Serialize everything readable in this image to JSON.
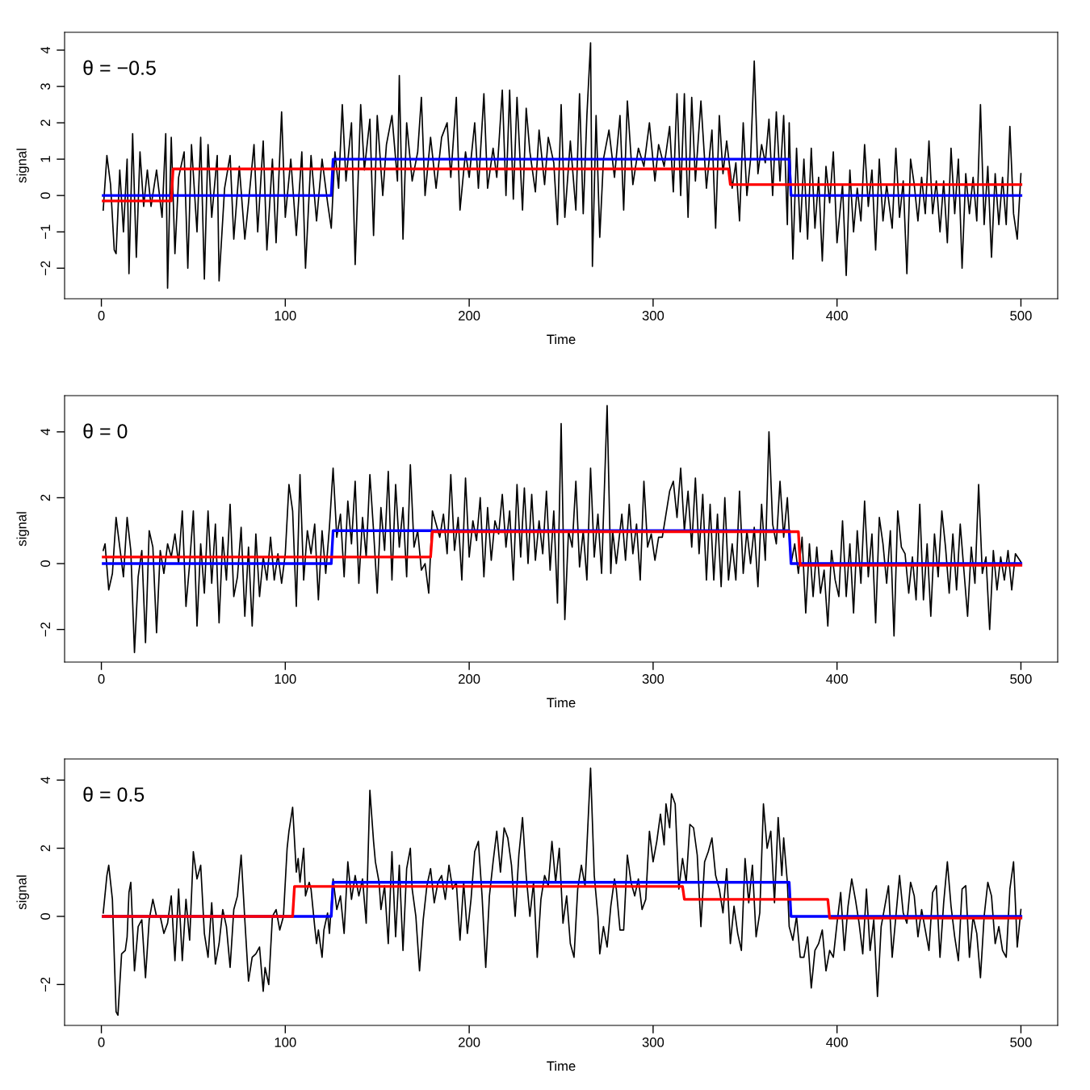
{
  "chart_data": [
    {
      "type": "line",
      "xlabel": "Time",
      "ylabel": "signal",
      "annotations": [
        "θ = −0.5"
      ],
      "xlim": [
        -20,
        520
      ],
      "xticks": [
        0,
        100,
        200,
        300,
        400,
        500
      ],
      "ylim": [
        -2.84,
        4.49
      ],
      "yticks": [
        -2,
        -1,
        0,
        1,
        2,
        3,
        4
      ],
      "grid": false,
      "legend": false,
      "series": [
        {
          "color": "#000000",
          "x": [
            1,
            3,
            5,
            7,
            8,
            10,
            12,
            14,
            15,
            17,
            19,
            21,
            23,
            25,
            27,
            30,
            33,
            35,
            36,
            38,
            40,
            42,
            45,
            47,
            49,
            52,
            54,
            56,
            58,
            60,
            63,
            64,
            67,
            70,
            72,
            75,
            78,
            80,
            83,
            85,
            88,
            90,
            93,
            95,
            98,
            100,
            103,
            106,
            109,
            111,
            114,
            117,
            120,
            123,
            125,
            127,
            129,
            131,
            133,
            136,
            138,
            141,
            143,
            146,
            148,
            150,
            153,
            155,
            158,
            161,
            162,
            164,
            166,
            169,
            172,
            174,
            176,
            179,
            182,
            185,
            188,
            190,
            193,
            195,
            198,
            200,
            203,
            205,
            208,
            210,
            213,
            215,
            218,
            220,
            222,
            224,
            226,
            229,
            231,
            233,
            236,
            238,
            241,
            243,
            246,
            248,
            250,
            252,
            255,
            258,
            260,
            262,
            264,
            266,
            267,
            269,
            271,
            273,
            276,
            279,
            282,
            284,
            286,
            289,
            292,
            295,
            298,
            301,
            303,
            306,
            309,
            311,
            313,
            315,
            317,
            319,
            321,
            323,
            326,
            329,
            332,
            334,
            336,
            338,
            340,
            343,
            345,
            347,
            349,
            351,
            353,
            355,
            357,
            359,
            361,
            363,
            365,
            367,
            369,
            371,
            373,
            374,
            376,
            378,
            380,
            382,
            384,
            386,
            388,
            390,
            392,
            394,
            396,
            398,
            400,
            403,
            405,
            407,
            409,
            411,
            413,
            415,
            417,
            419,
            421,
            423,
            425,
            427,
            430,
            432,
            434,
            436,
            438,
            440,
            442,
            444,
            446,
            448,
            450,
            452,
            454,
            456,
            458,
            460,
            462,
            464,
            466,
            468,
            470,
            472,
            474,
            476,
            478,
            480,
            482,
            484,
            486,
            488,
            490,
            492,
            494,
            496,
            498,
            500
          ],
          "values": [
            -0.4,
            1.1,
            0.3,
            -1.5,
            -1.6,
            0.7,
            -1.0,
            1.0,
            -2.15,
            1.7,
            -1.7,
            1.2,
            -0.3,
            0.7,
            -0.3,
            0.7,
            -0.6,
            1.7,
            -2.55,
            1.6,
            -1.6,
            0.5,
            1.2,
            -2.0,
            1.4,
            -1.0,
            1.6,
            -2.3,
            1.4,
            -0.6,
            1.1,
            -2.35,
            0.2,
            1.1,
            -1.2,
            0.8,
            -1.2,
            -0.2,
            1.4,
            -1.0,
            1.5,
            -1.5,
            1.0,
            -1.3,
            2.3,
            -0.6,
            1.0,
            -1.1,
            1.2,
            -2.0,
            1.1,
            -0.7,
            1.0,
            -0.2,
            -0.9,
            1.2,
            0.2,
            2.5,
            0.4,
            2.0,
            -1.9,
            2.5,
            0.7,
            2.1,
            -1.1,
            2.2,
            0.0,
            1.4,
            2.2,
            0.4,
            3.3,
            -1.2,
            2.0,
            0.4,
            1.2,
            2.7,
            0.0,
            1.6,
            0.2,
            1.6,
            2.0,
            0.5,
            2.7,
            -0.4,
            1.2,
            0.5,
            2.0,
            0.2,
            2.8,
            0.2,
            1.3,
            0.5,
            2.9,
            0.0,
            2.9,
            -0.1,
            2.7,
            -0.4,
            2.4,
            1.2,
            0.1,
            1.8,
            0.3,
            1.6,
            0.9,
            -0.8,
            2.5,
            -0.6,
            1.5,
            -0.4,
            2.8,
            -0.5,
            2.2,
            4.2,
            -1.95,
            2.2,
            -1.15,
            1.0,
            1.8,
            0.5,
            2.2,
            -0.4,
            2.6,
            0.3,
            1.3,
            0.8,
            2.0,
            0.4,
            1.4,
            0.8,
            1.9,
            0.1,
            2.8,
            0.0,
            2.8,
            -0.6,
            2.7,
            0.4,
            2.6,
            0.2,
            1.8,
            -0.9,
            2.2,
            0.6,
            1.5,
            0.2,
            0.9,
            -0.7,
            2.0,
            0.0,
            1.0,
            3.7,
            0.6,
            1.4,
            0.9,
            2.1,
            0.0,
            2.3,
            0.4,
            2.2,
            -0.8,
            2.0,
            -1.75,
            1.3,
            -1.0,
            1.0,
            -1.2,
            1.3,
            -0.9,
            0.5,
            -1.8,
            0.8,
            -0.2,
            1.2,
            -1.3,
            0.3,
            -2.2,
            0.7,
            -1.0,
            0.2,
            -0.7,
            1.4,
            -0.3,
            0.7,
            -1.5,
            1.0,
            -0.7,
            0.3,
            -0.9,
            1.3,
            -0.6,
            0.4,
            -2.15,
            1.0,
            0.3,
            -0.7,
            0.5,
            -0.5,
            1.5,
            -0.5,
            0.4,
            -1.0,
            0.4,
            -1.3,
            1.3,
            -0.5,
            1.0,
            -2.0,
            0.6,
            -0.5,
            0.5,
            -0.7,
            2.5,
            -0.8,
            0.8,
            -1.7,
            0.6,
            -0.8,
            0.5,
            -0.8,
            1.9,
            -0.5,
            -1.2,
            0.6
          ]
        },
        {
          "color": "#0000ff",
          "x": [
            1,
            125,
            126,
            374,
            375,
            500
          ],
          "values": [
            0,
            0,
            1,
            1,
            0,
            0
          ]
        },
        {
          "color": "#ff0000",
          "x": [
            1,
            38,
            39,
            341,
            342,
            500
          ],
          "values": [
            -0.15,
            -0.15,
            0.73,
            0.73,
            0.3,
            0.3
          ]
        }
      ]
    },
    {
      "type": "line",
      "xlabel": "Time",
      "ylabel": "signal",
      "annotations": [
        "θ = 0"
      ],
      "xlim": [
        -20,
        520
      ],
      "xticks": [
        0,
        100,
        200,
        300,
        400,
        500
      ],
      "ylim": [
        -2.99,
        5.1
      ],
      "yticks": [
        -2,
        0,
        2,
        4
      ],
      "grid": false,
      "legend": false,
      "series": [
        {
          "color": "#000000",
          "x": [
            1,
            2,
            4,
            6,
            8,
            10,
            12,
            14,
            16,
            18,
            20,
            22,
            24,
            26,
            28,
            30,
            32,
            34,
            36,
            38,
            40,
            42,
            44,
            46,
            48,
            50,
            52,
            54,
            56,
            58,
            60,
            62,
            64,
            66,
            68,
            70,
            72,
            74,
            76,
            78,
            80,
            82,
            84,
            86,
            88,
            90,
            92,
            94,
            96,
            98,
            100,
            102,
            104,
            106,
            108,
            110,
            112,
            114,
            116,
            118,
            120,
            122,
            124,
            126,
            128,
            130,
            132,
            134,
            136,
            138,
            140,
            142,
            144,
            146,
            148,
            150,
            152,
            154,
            156,
            158,
            160,
            162,
            164,
            166,
            168,
            170,
            172,
            174,
            176,
            178,
            180,
            182,
            184,
            186,
            188,
            190,
            192,
            194,
            196,
            198,
            200,
            202,
            204,
            206,
            208,
            210,
            212,
            214,
            216,
            218,
            220,
            222,
            224,
            226,
            228,
            230,
            232,
            234,
            236,
            238,
            240,
            242,
            244,
            246,
            248,
            250,
            252,
            254,
            256,
            258,
            260,
            262,
            264,
            266,
            268,
            270,
            272,
            275,
            277,
            278,
            280,
            283,
            285,
            287,
            289,
            291,
            293,
            295,
            297,
            299,
            301,
            303,
            305,
            307,
            309,
            311,
            313,
            315,
            317,
            319,
            321,
            323,
            325,
            327,
            329,
            331,
            333,
            335,
            337,
            339,
            341,
            343,
            345,
            347,
            349,
            351,
            353,
            355,
            357,
            359,
            361,
            363,
            365,
            367,
            369,
            371,
            373,
            375,
            377,
            379,
            381,
            383,
            385,
            387,
            389,
            391,
            393,
            395,
            397,
            399,
            401,
            403,
            405,
            407,
            409,
            411,
            413,
            415,
            417,
            419,
            421,
            423,
            425,
            427,
            429,
            431,
            433,
            435,
            437,
            439,
            441,
            443,
            445,
            447,
            449,
            451,
            453,
            455,
            457,
            459,
            461,
            463,
            465,
            467,
            469,
            471,
            473,
            475,
            477,
            479,
            481,
            483,
            485,
            487,
            489,
            491,
            493,
            495,
            497,
            500
          ],
          "values": [
            0.4,
            0.6,
            -0.8,
            -0.3,
            1.4,
            0.5,
            -0.4,
            1.4,
            0.4,
            -2.7,
            -0.4,
            0.4,
            -2.4,
            1.0,
            0.5,
            -2.1,
            0.4,
            -0.3,
            0.6,
            0.2,
            0.9,
            0.0,
            1.6,
            -1.3,
            0.0,
            1.6,
            -1.9,
            0.6,
            -0.9,
            1.6,
            -0.6,
            1.2,
            -1.8,
            0.8,
            -0.5,
            1.8,
            -1.0,
            -0.4,
            1.1,
            -1.6,
            0.5,
            -1.9,
            0.9,
            -1.0,
            0.2,
            -0.5,
            0.8,
            -0.5,
            0.3,
            -0.6,
            0.3,
            2.4,
            1.6,
            -1.3,
            2.7,
            -0.5,
            1.0,
            0.3,
            1.2,
            -1.1,
            1.0,
            -0.3,
            1.1,
            2.9,
            0.8,
            1.5,
            -0.4,
            1.9,
            0.6,
            2.5,
            -0.6,
            1.4,
            0.2,
            2.7,
            1.0,
            -0.9,
            1.7,
            0.4,
            2.8,
            -0.5,
            2.4,
            0.5,
            1.7,
            -0.4,
            3.0,
            0.5,
            1.0,
            -0.2,
            0.0,
            -0.9,
            1.6,
            1.2,
            0.8,
            1.5,
            0.3,
            2.7,
            0.4,
            1.4,
            -0.5,
            2.6,
            0.2,
            1.3,
            0.7,
            2.0,
            -0.4,
            1.7,
            0.1,
            1.3,
            0.9,
            2.1,
            0.5,
            1.6,
            -0.5,
            2.4,
            0.2,
            2.3,
            0.0,
            2.1,
            0.1,
            1.3,
            0.3,
            2.2,
            -0.2,
            1.6,
            -1.2,
            4.25,
            -1.7,
            1.0,
            0.5,
            2.5,
            -0.1,
            1.0,
            -0.5,
            2.9,
            0.2,
            1.5,
            -0.3,
            4.8,
            -0.3,
            1.0,
            0.0,
            1.5,
            0.1,
            1.8,
            0.3,
            1.2,
            -0.5,
            2.5,
            0.5,
            0.9,
            0.1,
            0.8,
            0.8,
            1.5,
            2.2,
            2.5,
            1.4,
            2.9,
            1.0,
            2.2,
            0.5,
            2.6,
            0.3,
            2.1,
            -0.5,
            1.8,
            -0.5,
            1.5,
            -0.7,
            2.0,
            -0.5,
            0.6,
            -0.5,
            2.2,
            -0.3,
            1.0,
            0.0,
            1.1,
            -0.7,
            1.8,
            0.1,
            4.0,
            1.2,
            0.6,
            2.5,
            0.8,
            2.0,
            0.0,
            0.6,
            -0.3,
            0.8,
            -1.5,
            0.6,
            -1.0,
            0.5,
            -0.9,
            -0.2,
            -1.9,
            0.4,
            -0.5,
            -1.0,
            1.3,
            -1.0,
            0.6,
            -1.5,
            1.0,
            -0.6,
            1.9,
            -0.4,
            0.9,
            -1.8,
            1.4,
            0.6,
            -0.6,
            1.0,
            -2.2,
            1.6,
            0.5,
            0.3,
            -0.9,
            0.2,
            -1.1,
            1.8,
            -1.1,
            0.6,
            -1.6,
            0.9,
            -0.4,
            1.6,
            0.5,
            -0.9,
            0.9,
            -0.8,
            1.2,
            -0.2,
            -1.6,
            0.5,
            -0.6,
            2.4,
            -0.3,
            0.2,
            -2.0,
            0.4,
            -0.8,
            0.2,
            -0.5,
            0.4,
            -0.8,
            0.3,
            0.05
          ]
        },
        {
          "color": "#0000ff",
          "x": [
            1,
            125,
            126,
            374,
            375,
            500
          ],
          "values": [
            0,
            0,
            1,
            1,
            0,
            0
          ]
        },
        {
          "color": "#ff0000",
          "x": [
            1,
            179,
            180,
            379,
            380,
            500
          ],
          "values": [
            0.2,
            0.2,
            0.97,
            0.97,
            -0.05,
            -0.05
          ]
        }
      ]
    },
    {
      "type": "line",
      "xlabel": "Time",
      "ylabel": "signal",
      "annotations": [
        "θ = 0.5"
      ],
      "xlim": [
        -20,
        520
      ],
      "xticks": [
        0,
        100,
        200,
        300,
        400,
        500
      ],
      "ylim": [
        -3.2,
        4.62
      ],
      "yticks": [
        -2,
        0,
        2,
        4
      ],
      "grid": false,
      "legend": false,
      "series": [
        {
          "color": "#000000",
          "x": [
            1,
            3,
            4,
            6,
            8,
            9,
            11,
            13,
            14,
            15,
            16,
            18,
            20,
            22,
            24,
            26,
            28,
            30,
            32,
            34,
            36,
            38,
            40,
            42,
            44,
            46,
            48,
            50,
            52,
            54,
            56,
            58,
            60,
            62,
            64,
            66,
            68,
            70,
            72,
            74,
            76,
            78,
            80,
            82,
            84,
            86,
            88,
            89,
            91,
            93,
            95,
            97,
            99,
            101,
            102,
            104,
            106,
            107,
            108,
            110,
            111,
            113,
            114,
            116,
            117,
            118,
            120,
            121,
            123,
            124,
            126,
            128,
            130,
            132,
            134,
            136,
            138,
            140,
            142,
            144,
            146,
            148,
            149,
            151,
            152,
            154,
            156,
            158,
            160,
            162,
            164,
            166,
            168,
            169,
            171,
            173,
            175,
            177,
            179,
            181,
            183,
            185,
            187,
            189,
            191,
            193,
            195,
            197,
            199,
            201,
            203,
            205,
            207,
            209,
            211,
            213,
            215,
            217,
            219,
            221,
            223,
            225,
            227,
            229,
            231,
            233,
            235,
            237,
            239,
            241,
            243,
            245,
            247,
            249,
            251,
            253,
            255,
            257,
            259,
            261,
            263,
            266,
            268,
            270,
            271,
            273,
            275,
            277,
            279,
            280,
            282,
            284,
            286,
            288,
            290,
            292,
            294,
            296,
            298,
            300,
            302,
            304,
            306,
            307,
            309,
            310,
            312,
            314,
            316,
            318,
            320,
            322,
            324,
            326,
            328,
            330,
            332,
            334,
            336,
            338,
            340,
            342,
            344,
            346,
            348,
            350,
            352,
            354,
            356,
            358,
            360,
            362,
            364,
            366,
            368,
            370,
            371,
            373,
            374,
            376,
            378,
            380,
            382,
            384,
            386,
            388,
            390,
            392,
            394,
            396,
            398,
            400,
            402,
            404,
            406,
            408,
            410,
            412,
            414,
            416,
            418,
            420,
            422,
            424,
            426,
            428,
            430,
            432,
            434,
            436,
            438,
            440,
            442,
            444,
            446,
            448,
            450,
            452,
            454,
            456,
            458,
            460,
            462,
            464,
            466,
            468,
            470,
            472,
            474,
            476,
            478,
            480,
            482,
            484,
            486,
            488,
            490,
            492,
            494,
            496,
            497,
            498,
            500
          ],
          "values": [
            0.1,
            1.2,
            1.5,
            0.5,
            -2.8,
            -2.9,
            -1.1,
            -1.0,
            -0.6,
            0.7,
            1.0,
            -1.6,
            -0.3,
            -0.1,
            -1.8,
            -0.1,
            0.5,
            0.0,
            0.0,
            -0.5,
            -0.2,
            0.6,
            -1.3,
            0.8,
            -1.3,
            0.5,
            -0.7,
            1.9,
            1.1,
            1.5,
            -0.5,
            -1.2,
            0.4,
            -1.4,
            -0.8,
            0.2,
            -0.3,
            -1.5,
            0.2,
            0.6,
            1.8,
            -0.1,
            -1.9,
            -1.2,
            -1.1,
            -0.9,
            -2.2,
            -1.5,
            -2.0,
            0.0,
            0.2,
            -0.4,
            0.0,
            2.0,
            2.5,
            3.2,
            1.3,
            1.7,
            1.0,
            2.0,
            0.6,
            1.0,
            0.8,
            -0.3,
            -0.8,
            -0.4,
            -1.2,
            -0.4,
            0.1,
            -0.5,
            1.1,
            0.2,
            0.6,
            -0.5,
            1.6,
            0.5,
            1.2,
            0.6,
            1.1,
            -0.2,
            3.7,
            2.2,
            1.6,
            1.0,
            0.2,
            0.9,
            -0.8,
            1.9,
            -0.6,
            1.5,
            -1.0,
            1.4,
            2.0,
            0.8,
            0.0,
            -1.6,
            -0.1,
            0.9,
            1.4,
            0.4,
            1.0,
            1.2,
            0.5,
            1.5,
            0.8,
            1.0,
            -0.7,
            1.0,
            -0.5,
            0.5,
            1.9,
            2.2,
            0.6,
            -1.5,
            0.6,
            1.6,
            2.5,
            1.3,
            2.6,
            2.3,
            1.5,
            0.0,
            1.8,
            2.9,
            1.2,
            0.0,
            1.0,
            -1.2,
            0.5,
            1.2,
            0.9,
            2.2,
            1.0,
            2.0,
            -0.2,
            0.6,
            -0.8,
            -1.2,
            0.8,
            1.5,
            0.9,
            4.35,
            1.2,
            0.0,
            -1.1,
            -0.3,
            -0.9,
            0.3,
            1.1,
            0.8,
            -0.4,
            -0.4,
            1.8,
            1.0,
            0.6,
            1.1,
            0.2,
            0.5,
            2.5,
            1.6,
            2.2,
            3.0,
            2.1,
            3.3,
            2.6,
            3.6,
            3.3,
            0.8,
            1.7,
            1.0,
            2.7,
            2.6,
            1.8,
            -0.3,
            1.6,
            1.9,
            2.3,
            1.2,
            0.8,
            0.1,
            1.4,
            -0.8,
            0.3,
            -0.5,
            -1.0,
            1.7,
            0.4,
            1.5,
            -0.6,
            0.1,
            3.3,
            2.0,
            2.5,
            0.4,
            2.9,
            1.2,
            2.3,
            1.0,
            -0.3,
            -0.7,
            0.0,
            -1.2,
            -1.2,
            -0.6,
            -2.1,
            -1.0,
            -0.8,
            -0.4,
            -1.6,
            -1.0,
            -1.2,
            -0.2,
            0.7,
            -1.0,
            0.3,
            1.1,
            0.5,
            -0.2,
            -1.1,
            0.8,
            -1.0,
            -0.1,
            -2.35,
            -0.3,
            0.3,
            0.9,
            -1.2,
            0.0,
            1.2,
            0.1,
            -0.2,
            1.0,
            0.6,
            -0.6,
            0.2,
            -0.4,
            -1.0,
            0.7,
            0.9,
            -1.2,
            0.4,
            1.6,
            0.3,
            -0.6,
            -1.3,
            0.8,
            0.9,
            -1.2,
            0.0,
            -0.5,
            -1.8,
            0.0,
            1.0,
            0.6,
            -0.8,
            -0.3,
            -1.0,
            -1.2,
            0.8,
            1.6,
            0.4,
            -0.9,
            0.2
          ]
        },
        {
          "color": "#0000ff",
          "x": [
            1,
            125,
            126,
            374,
            375,
            500
          ],
          "values": [
            0,
            0,
            1,
            1,
            0,
            0
          ]
        },
        {
          "color": "#ff0000",
          "x": [
            1,
            104,
            105,
            316,
            317,
            395,
            396,
            500
          ],
          "values": [
            0,
            0,
            0.88,
            0.88,
            0.5,
            0.5,
            -0.05,
            -0.05
          ]
        }
      ]
    }
  ]
}
